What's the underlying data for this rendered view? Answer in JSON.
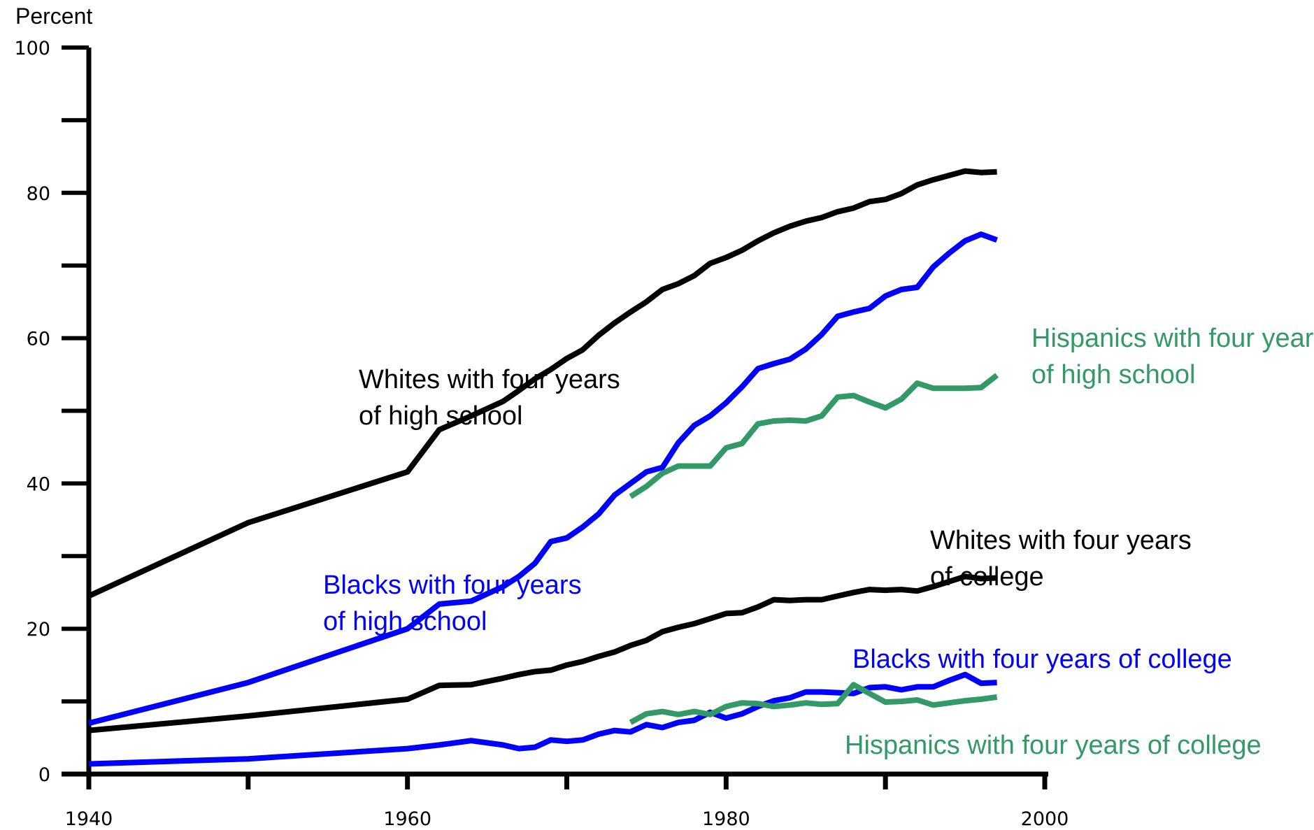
{
  "chart_data": {
    "type": "line",
    "ylabel": "Percent",
    "xlabel": "",
    "xlim": [
      1940,
      2000
    ],
    "ylim": [
      0,
      100
    ],
    "x_ticks": [
      1940,
      1960,
      1980,
      2000
    ],
    "y_ticks": [
      0,
      20,
      40,
      60,
      80,
      100
    ],
    "series": [
      {
        "name": "Whites with four years of high school",
        "label_lines": [
          "Whites with four years",
          "of high school"
        ],
        "color": "#000000",
        "points": [
          [
            1940,
            24.5
          ],
          [
            1950,
            34.6
          ],
          [
            1960,
            41.6
          ],
          [
            1962,
            47.4
          ],
          [
            1964,
            49.3
          ],
          [
            1966,
            51.3
          ],
          [
            1967,
            52.8
          ],
          [
            1968,
            54.4
          ],
          [
            1969,
            55.7
          ],
          [
            1970,
            57.2
          ],
          [
            1971,
            58.4
          ],
          [
            1972,
            60.4
          ],
          [
            1973,
            62.1
          ],
          [
            1974,
            63.6
          ],
          [
            1975,
            65.0
          ],
          [
            1976,
            66.7
          ],
          [
            1977,
            67.5
          ],
          [
            1978,
            68.6
          ],
          [
            1979,
            70.3
          ],
          [
            1980,
            71.1
          ],
          [
            1981,
            72.1
          ],
          [
            1982,
            73.4
          ],
          [
            1983,
            74.5
          ],
          [
            1984,
            75.4
          ],
          [
            1985,
            76.1
          ],
          [
            1986,
            76.6
          ],
          [
            1987,
            77.4
          ],
          [
            1988,
            77.9
          ],
          [
            1989,
            78.8
          ],
          [
            1990,
            79.1
          ],
          [
            1991,
            79.9
          ],
          [
            1992,
            81.1
          ],
          [
            1993,
            81.8
          ],
          [
            1994,
            82.4
          ],
          [
            1995,
            83.0
          ],
          [
            1996,
            82.8
          ],
          [
            1997,
            82.9
          ]
        ]
      },
      {
        "name": "Blacks with four years of high school",
        "label_lines": [
          "Blacks with four years",
          "of high school"
        ],
        "color": "#0000ff",
        "points": [
          [
            1940,
            7.0
          ],
          [
            1950,
            12.6
          ],
          [
            1960,
            20.0
          ],
          [
            1962,
            23.4
          ],
          [
            1964,
            23.8
          ],
          [
            1966,
            25.8
          ],
          [
            1967,
            27.2
          ],
          [
            1968,
            29.0
          ],
          [
            1969,
            32.0
          ],
          [
            1970,
            32.5
          ],
          [
            1971,
            34.0
          ],
          [
            1972,
            35.8
          ],
          [
            1973,
            38.4
          ],
          [
            1974,
            40.0
          ],
          [
            1975,
            41.6
          ],
          [
            1976,
            42.2
          ],
          [
            1977,
            45.6
          ],
          [
            1978,
            48.0
          ],
          [
            1979,
            49.3
          ],
          [
            1980,
            51.1
          ],
          [
            1981,
            53.3
          ],
          [
            1982,
            55.8
          ],
          [
            1983,
            56.5
          ],
          [
            1984,
            57.1
          ],
          [
            1985,
            58.5
          ],
          [
            1986,
            60.5
          ],
          [
            1987,
            63.0
          ],
          [
            1988,
            63.6
          ],
          [
            1989,
            64.1
          ],
          [
            1990,
            65.8
          ],
          [
            1991,
            66.7
          ],
          [
            1992,
            67.0
          ],
          [
            1993,
            69.8
          ],
          [
            1994,
            71.7
          ],
          [
            1995,
            73.4
          ],
          [
            1996,
            74.3
          ],
          [
            1997,
            73.5
          ]
        ]
      },
      {
        "name": "Hispanics with four years of high school",
        "label_lines": [
          "Hispanics with four years",
          "of high school"
        ],
        "color": "#339966",
        "points": [
          [
            1974,
            38.2
          ],
          [
            1975,
            39.6
          ],
          [
            1976,
            41.4
          ],
          [
            1977,
            42.4
          ],
          [
            1978,
            42.4
          ],
          [
            1979,
            42.4
          ],
          [
            1980,
            44.9
          ],
          [
            1981,
            45.5
          ],
          [
            1982,
            48.2
          ],
          [
            1983,
            48.6
          ],
          [
            1984,
            48.7
          ],
          [
            1985,
            48.6
          ],
          [
            1986,
            49.3
          ],
          [
            1987,
            51.9
          ],
          [
            1988,
            52.1
          ],
          [
            1989,
            51.2
          ],
          [
            1990,
            50.4
          ],
          [
            1991,
            51.6
          ],
          [
            1992,
            53.8
          ],
          [
            1993,
            53.1
          ],
          [
            1994,
            53.1
          ],
          [
            1995,
            53.1
          ],
          [
            1996,
            53.2
          ],
          [
            1997,
            54.9
          ]
        ]
      },
      {
        "name": "Whites with four years of college",
        "label_lines": [
          "Whites with four years",
          "of college"
        ],
        "color": "#000000",
        "points": [
          [
            1940,
            6.0
          ],
          [
            1950,
            8.0
          ],
          [
            1960,
            10.3
          ],
          [
            1962,
            12.2
          ],
          [
            1964,
            12.3
          ],
          [
            1966,
            13.2
          ],
          [
            1967,
            13.7
          ],
          [
            1968,
            14.1
          ],
          [
            1969,
            14.3
          ],
          [
            1970,
            15.0
          ],
          [
            1971,
            15.5
          ],
          [
            1972,
            16.2
          ],
          [
            1973,
            16.8
          ],
          [
            1974,
            17.7
          ],
          [
            1975,
            18.4
          ],
          [
            1976,
            19.6
          ],
          [
            1977,
            20.2
          ],
          [
            1978,
            20.7
          ],
          [
            1979,
            21.4
          ],
          [
            1980,
            22.1
          ],
          [
            1981,
            22.2
          ],
          [
            1982,
            23.0
          ],
          [
            1983,
            24.0
          ],
          [
            1984,
            23.9
          ],
          [
            1985,
            24.0
          ],
          [
            1986,
            24.0
          ],
          [
            1987,
            24.5
          ],
          [
            1988,
            25.0
          ],
          [
            1989,
            25.4
          ],
          [
            1990,
            25.3
          ],
          [
            1991,
            25.4
          ],
          [
            1992,
            25.2
          ],
          [
            1993,
            25.8
          ],
          [
            1994,
            26.5
          ],
          [
            1995,
            27.2
          ],
          [
            1996,
            26.9
          ],
          [
            1997,
            27.0
          ]
        ]
      },
      {
        "name": "Blacks with four years of college",
        "label_lines": [
          "Blacks with four years of college"
        ],
        "color": "#0000ff",
        "points": [
          [
            1940,
            1.4
          ],
          [
            1950,
            2.1
          ],
          [
            1960,
            3.5
          ],
          [
            1962,
            4.0
          ],
          [
            1964,
            4.6
          ],
          [
            1966,
            4.0
          ],
          [
            1967,
            3.5
          ],
          [
            1968,
            3.7
          ],
          [
            1969,
            4.7
          ],
          [
            1970,
            4.5
          ],
          [
            1971,
            4.7
          ],
          [
            1972,
            5.5
          ],
          [
            1973,
            6.0
          ],
          [
            1974,
            5.8
          ],
          [
            1975,
            6.8
          ],
          [
            1976,
            6.4
          ],
          [
            1977,
            7.1
          ],
          [
            1978,
            7.4
          ],
          [
            1979,
            8.5
          ],
          [
            1980,
            7.7
          ],
          [
            1981,
            8.3
          ],
          [
            1982,
            9.3
          ],
          [
            1983,
            10.1
          ],
          [
            1984,
            10.5
          ],
          [
            1985,
            11.3
          ],
          [
            1986,
            11.3
          ],
          [
            1987,
            11.2
          ],
          [
            1988,
            11.1
          ],
          [
            1989,
            11.9
          ],
          [
            1990,
            12.0
          ],
          [
            1991,
            11.6
          ],
          [
            1992,
            12.0
          ],
          [
            1993,
            12.0
          ],
          [
            1994,
            12.9
          ],
          [
            1995,
            13.7
          ],
          [
            1996,
            12.5
          ],
          [
            1997,
            12.6
          ]
        ]
      },
      {
        "name": "Hispanics with four years of college",
        "label_lines": [
          "Hispanics with four years of college"
        ],
        "color": "#339966",
        "points": [
          [
            1974,
            7.1
          ],
          [
            1975,
            8.3
          ],
          [
            1976,
            8.6
          ],
          [
            1977,
            8.2
          ],
          [
            1978,
            8.6
          ],
          [
            1979,
            8.2
          ],
          [
            1980,
            9.3
          ],
          [
            1981,
            9.8
          ],
          [
            1982,
            9.7
          ],
          [
            1983,
            9.3
          ],
          [
            1984,
            9.5
          ],
          [
            1985,
            9.8
          ],
          [
            1986,
            9.6
          ],
          [
            1987,
            9.7
          ],
          [
            1988,
            12.3
          ],
          [
            1989,
            11.1
          ],
          [
            1990,
            9.9
          ],
          [
            1991,
            10.0
          ],
          [
            1992,
            10.2
          ],
          [
            1993,
            9.5
          ],
          [
            1994,
            9.8
          ],
          [
            1995,
            10.1
          ],
          [
            1996,
            10.3
          ],
          [
            1997,
            10.6
          ]
        ]
      }
    ]
  }
}
